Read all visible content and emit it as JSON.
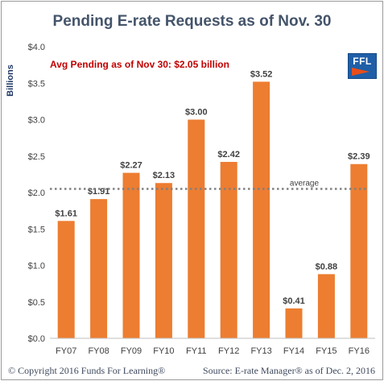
{
  "title": "Pending E-rate Requests as of Nov. 30",
  "annotation": "Avg Pending as of Nov 30: $2.05 billion",
  "logo_text": "FFL",
  "footer_left": "© Copyright 2016 Funds For Learning®",
  "footer_right": "Source: E-rate Manager® as of Dec. 2, 2016",
  "colors": {
    "bar": "#ed7d31",
    "average_line": "#808080",
    "annotation": "#c00000",
    "title": "#44546a"
  },
  "chart_data": {
    "type": "bar",
    "title": "Pending E-rate Requests as of Nov. 30",
    "ylabel": "Billions",
    "xlabel": "",
    "categories": [
      "FY07",
      "FY08",
      "FY09",
      "FY10",
      "FY11",
      "FY12",
      "FY13",
      "FY14",
      "FY15",
      "FY16"
    ],
    "values": [
      1.61,
      1.91,
      2.27,
      2.13,
      3.0,
      2.42,
      3.52,
      0.41,
      0.88,
      2.39
    ],
    "data_labels": [
      "$1.61",
      "$1.91",
      "$2.27",
      "$2.13",
      "$3.00",
      "$2.42",
      "$3.52",
      "$0.41",
      "$0.88",
      "$2.39"
    ],
    "ylim": [
      0,
      4.0
    ],
    "yticks": [
      0,
      0.5,
      1.0,
      1.5,
      2.0,
      2.5,
      3.0,
      3.5,
      4.0
    ],
    "ytick_labels": [
      "$0.0",
      "$0.5",
      "$1.0",
      "$1.5",
      "$2.0",
      "$2.5",
      "$3.0",
      "$3.5",
      "$4.0"
    ],
    "average": {
      "value": 2.05,
      "label": "average"
    },
    "grid": false,
    "legend": "none"
  }
}
